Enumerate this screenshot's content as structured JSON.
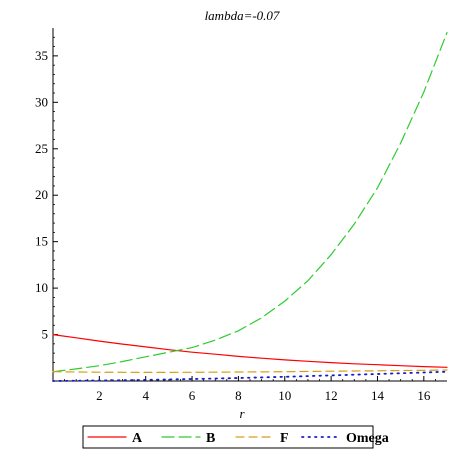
{
  "chart_data": {
    "type": "line",
    "title": "lambda=-0.07",
    "xlabel": "r",
    "ylabel": "",
    "xlim": [
      0,
      17
    ],
    "ylim": [
      0,
      38
    ],
    "xticks": [
      2,
      4,
      6,
      8,
      10,
      12,
      14,
      16
    ],
    "yticks": [
      5,
      10,
      15,
      20,
      25,
      30,
      35
    ],
    "grid": false,
    "legend_position": "bottom",
    "series": [
      {
        "name": "A",
        "color": "#ff0000",
        "style": "solid",
        "x": [
          0,
          1,
          2,
          3,
          4,
          5,
          6,
          7,
          8,
          9,
          10,
          11,
          12,
          13,
          14,
          15,
          16,
          17
        ],
        "y": [
          5.0,
          4.65,
          4.3,
          3.97,
          3.67,
          3.37,
          3.1,
          2.88,
          2.65,
          2.45,
          2.27,
          2.12,
          1.98,
          1.85,
          1.75,
          1.65,
          1.55,
          1.48
        ]
      },
      {
        "name": "B",
        "color": "#2ecc2e",
        "style": "long-dash",
        "x": [
          0,
          1,
          2,
          3,
          4,
          5,
          6,
          7,
          8,
          9,
          10,
          11,
          12,
          13,
          14,
          15,
          16,
          17
        ],
        "y": [
          1.0,
          1.3,
          1.65,
          2.1,
          2.6,
          3.1,
          3.6,
          4.4,
          5.4,
          6.8,
          8.6,
          10.8,
          13.6,
          16.9,
          20.8,
          25.6,
          31.1,
          37.5
        ]
      },
      {
        "name": "F",
        "color": "#d4a017",
        "style": "dash",
        "x": [
          0,
          2,
          4,
          6,
          8,
          10,
          12,
          14,
          16,
          17
        ],
        "y": [
          1.0,
          0.95,
          0.93,
          0.94,
          0.97,
          1.0,
          1.05,
          1.1,
          1.15,
          1.18
        ]
      },
      {
        "name": "Omega",
        "color": "#1a1acc",
        "style": "dot",
        "x": [
          0,
          2,
          4,
          6,
          8,
          10,
          12,
          14,
          16,
          17
        ],
        "y": [
          0.0,
          0.05,
          0.12,
          0.22,
          0.32,
          0.45,
          0.6,
          0.75,
          0.92,
          1.0
        ]
      }
    ]
  }
}
